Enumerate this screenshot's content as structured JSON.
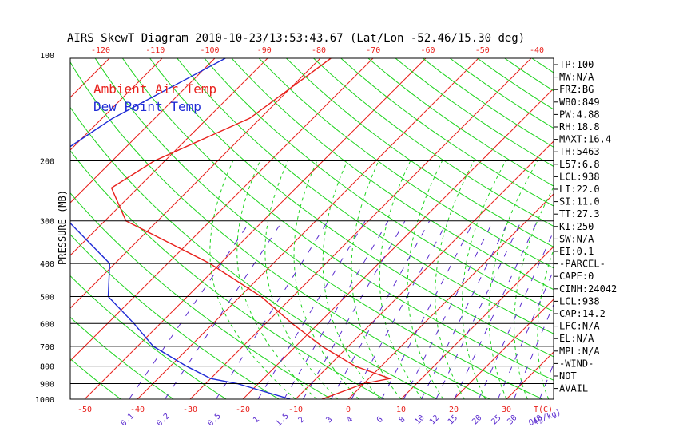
{
  "chart_data": {
    "type": "line",
    "title": "AIRS SkewT Diagram 2010-10-23/13:53:43.67 (Lat/Lon -52.46/15.30 deg)",
    "ylabel": "PRESSURE (MB)",
    "y_scale": "log",
    "ylim": [
      1000,
      100
    ],
    "pressure_ticks": [
      100,
      200,
      300,
      400,
      500,
      600,
      700,
      800,
      900,
      1000
    ],
    "bottom_temp_ticks": [
      -50,
      -40,
      -30,
      -20,
      -10,
      0,
      10,
      20,
      30
    ],
    "bottom_temp_unit": "T(C)",
    "top_temp_ticks": [
      -120,
      -110,
      -100,
      -90,
      -80,
      -70,
      -60,
      -50,
      -40
    ],
    "mixing_ratio_ticks": [
      "0.1",
      "0.2",
      "0.5",
      "1",
      "1.5",
      "2",
      "3",
      "4",
      "6",
      "8",
      "10",
      "12",
      "15",
      "20",
      "25",
      "30",
      "40"
    ],
    "mixing_ratio_unit": "Q(g/kg)",
    "legend": [
      {
        "label": "Ambient Air Temp",
        "color": "#e8211c"
      },
      {
        "label": "Dew Point Temp",
        "color": "#1f2bd6"
      }
    ],
    "series": [
      {
        "name": "Ambient Air Temp",
        "color": "#e8211c",
        "points": [
          {
            "p": 100,
            "t": -68
          },
          {
            "p": 150,
            "t": -72
          },
          {
            "p": 200,
            "t": -82
          },
          {
            "p": 240,
            "t": -85
          },
          {
            "p": 300,
            "t": -76
          },
          {
            "p": 400,
            "t": -52
          },
          {
            "p": 500,
            "t": -36
          },
          {
            "p": 600,
            "t": -25
          },
          {
            "p": 700,
            "t": -15
          },
          {
            "p": 800,
            "t": -5
          },
          {
            "p": 870,
            "t": 4
          },
          {
            "p": 900,
            "t": 0
          },
          {
            "p": 1000,
            "t": -5
          }
        ]
      },
      {
        "name": "Dew Point Temp",
        "color": "#1f2bd6",
        "points": [
          {
            "p": 100,
            "t": -88
          },
          {
            "p": 150,
            "t": -98
          },
          {
            "p": 200,
            "t": -102
          },
          {
            "p": 300,
            "t": -87
          },
          {
            "p": 400,
            "t": -71
          },
          {
            "p": 500,
            "t": -65
          },
          {
            "p": 600,
            "t": -55
          },
          {
            "p": 700,
            "t": -47
          },
          {
            "p": 800,
            "t": -37
          },
          {
            "p": 870,
            "t": -30
          },
          {
            "p": 900,
            "t": -24
          },
          {
            "p": 1000,
            "t": -11
          }
        ]
      }
    ]
  },
  "indices": [
    "TP:100",
    "MW:N/A",
    "FRZ:BG",
    "WB0:849",
    "PW:4.88",
    "RH:18.8",
    "MAXT:16.4",
    "TH:5463",
    "L57:6.8",
    "LCL:938",
    "LI:22.0",
    "SI:11.0",
    "TT:27.3",
    "KI:250",
    "SW:N/A",
    "EI:0.1",
    "-PARCEL-",
    "CAPE:0",
    "CINH:24042",
    "LCL:938",
    "CAP:14.2",
    "LFC:N/A",
    "EL:N/A",
    "MPL:N/A",
    "-WIND-",
    "NOT",
    "AVAIL"
  ],
  "colors": {
    "frame": "#000000",
    "isotherm": "#e8211c",
    "dry_adiabat": "#1fd41f",
    "moist_adiabat": "#1fd41f",
    "mixing_ratio": "#5b2ccf",
    "axis_text": "#e8211c",
    "mixing_text": "#5b2ccf"
  }
}
